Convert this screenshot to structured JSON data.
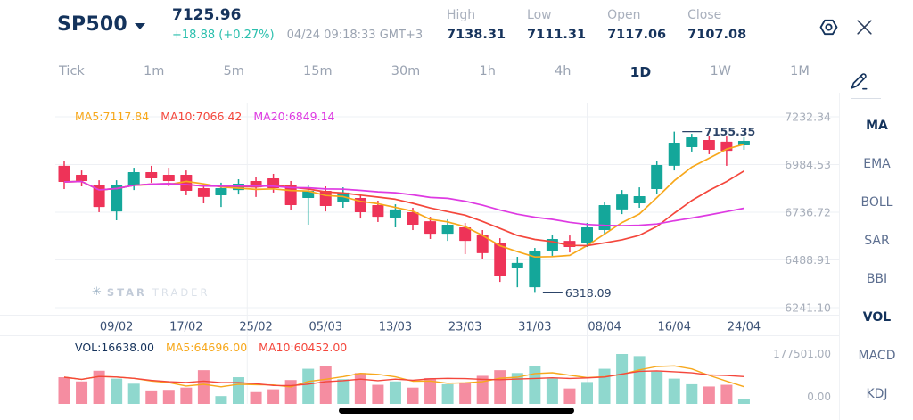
{
  "header": {
    "symbol": "SP500",
    "price": "7125.96",
    "change": "+18.88 (+0.27%)",
    "timestamp": "04/24 09:18:33 GMT+3",
    "stats": [
      {
        "label": "High",
        "value": "7138.31"
      },
      {
        "label": "Low",
        "value": "7111.31"
      },
      {
        "label": "Open",
        "value": "7117.06"
      },
      {
        "label": "Close",
        "value": "7107.08"
      }
    ]
  },
  "icons": {
    "settings": "gear-icon",
    "close": "close-icon",
    "draw": "pencil-icon",
    "symbol_caret": "chevron-down-icon"
  },
  "timeframes": {
    "items": [
      "Tick",
      "1m",
      "5m",
      "15m",
      "30m",
      "1h",
      "4h",
      "1D",
      "1W",
      "1M"
    ],
    "active": "1D"
  },
  "sidebar": {
    "items": [
      "MA",
      "EMA",
      "BOLL",
      "SAR",
      "BBI",
      "VOL",
      "MACD",
      "KDJ"
    ],
    "active": [
      "MA",
      "VOL"
    ]
  },
  "price_ma_labels": [
    {
      "text": "MA5:7117.84",
      "color": "ma5"
    },
    {
      "text": "MA10:7066.42",
      "color": "ma10"
    },
    {
      "text": "MA20:6849.14",
      "color": "ma20"
    }
  ],
  "volume_labels": [
    {
      "text": "VOL:16638.00",
      "color": "navy"
    },
    {
      "text": "MA5:64696.00",
      "color": "ma5"
    },
    {
      "text": "MA10:60452.00",
      "color": "ma10"
    }
  ],
  "watermark": {
    "star_icon": "✳",
    "text_bold": "STAR",
    "text_light": "TRADER"
  },
  "colors": {
    "bull": "#14a79a",
    "bear": "#ee3358",
    "bull_vol": "#8fd8ce",
    "bear_vol": "#f58da1",
    "ma5": "#f7a81c",
    "ma10": "#f4473c",
    "ma20": "#de3ae2",
    "navy": "#16335c",
    "gray_label": "#a7aeba",
    "date_label": "#3b5175",
    "grid": "#eef0f4",
    "annotation": "#2c4468",
    "accent_up": "#2abfad"
  },
  "chart_data": {
    "type": "candlestick+volume",
    "title": "SP500 1D",
    "y_ticks": [
      {
        "label": "7232.34",
        "value": 7232.34
      },
      {
        "label": "6984.53",
        "value": 6984.53
      },
      {
        "label": "6736.72",
        "value": 6736.72
      },
      {
        "label": "6488.91",
        "value": 6488.91
      },
      {
        "label": "6241.10",
        "value": 6241.1
      }
    ],
    "x_ticks": [
      {
        "label": "09/02",
        "index": 3
      },
      {
        "label": "17/02",
        "index": 7
      },
      {
        "label": "25/02",
        "index": 11
      },
      {
        "label": "05/03",
        "index": 15
      },
      {
        "label": "13/03",
        "index": 19
      },
      {
        "label": "23/03",
        "index": 23
      },
      {
        "label": "31/03",
        "index": 27
      },
      {
        "label": "08/04",
        "index": 31
      },
      {
        "label": "16/04",
        "index": 35
      },
      {
        "label": "24/04",
        "index": 39
      }
    ],
    "v_gridline_indices": [
      10.5,
      30
    ],
    "candles_ohlc": [
      [
        6978,
        7001,
        6857,
        6894
      ],
      [
        6931,
        6954,
        6871,
        6899
      ],
      [
        6880,
        6903,
        6737,
        6764
      ],
      [
        6741,
        6903,
        6695,
        6880
      ],
      [
        6876,
        6968,
        6852,
        6945
      ],
      [
        6945,
        6978,
        6890,
        6913
      ],
      [
        6931,
        6968,
        6871,
        6899
      ],
      [
        6931,
        6954,
        6825,
        6848
      ],
      [
        6862,
        6885,
        6783,
        6816
      ],
      [
        6825,
        6890,
        6764,
        6862
      ],
      [
        6852,
        6908,
        6829,
        6885
      ],
      [
        6899,
        6922,
        6816,
        6866
      ],
      [
        6913,
        6936,
        6839,
        6862
      ],
      [
        6876,
        6899,
        6746,
        6774
      ],
      [
        6811,
        6876,
        6672,
        6848
      ],
      [
        6848,
        6871,
        6741,
        6769
      ],
      [
        6788,
        6866,
        6760,
        6839
      ],
      [
        6811,
        6834,
        6704,
        6737
      ],
      [
        6774,
        6797,
        6686,
        6713
      ],
      [
        6709,
        6778,
        6658,
        6751
      ],
      [
        6737,
        6760,
        6644,
        6672
      ],
      [
        6690,
        6713,
        6598,
        6625
      ],
      [
        6625,
        6700,
        6588,
        6672
      ],
      [
        6658,
        6681,
        6519,
        6588
      ],
      [
        6621,
        6644,
        6496,
        6524
      ],
      [
        6579,
        6602,
        6375,
        6403
      ],
      [
        6449,
        6505,
        6347,
        6473
      ],
      [
        6347,
        6551,
        6318.09,
        6533
      ],
      [
        6533,
        6621,
        6510,
        6598
      ],
      [
        6588,
        6616,
        6528,
        6556
      ],
      [
        6579,
        6681,
        6556,
        6658
      ],
      [
        6644,
        6792,
        6625,
        6774
      ],
      [
        6751,
        6852,
        6727,
        6829
      ],
      [
        6783,
        6866,
        6760,
        6820
      ],
      [
        6857,
        7005,
        6834,
        6982
      ],
      [
        6978,
        7155.35,
        6954,
        7098
      ],
      [
        7075,
        7144,
        7052,
        7126
      ],
      [
        7112,
        7135,
        7038,
        7061
      ],
      [
        7103,
        7130,
        6978,
        7056
      ],
      [
        7084,
        7126,
        7061,
        7107.08
      ]
    ],
    "volumes": [
      95000,
      80000,
      118000,
      90000,
      72000,
      48000,
      50000,
      58000,
      120000,
      28000,
      95000,
      42000,
      52000,
      85000,
      125000,
      135000,
      88000,
      110000,
      68000,
      80000,
      58000,
      92000,
      70000,
      75000,
      100000,
      120000,
      110000,
      135000,
      90000,
      55000,
      78000,
      125000,
      177501,
      170000,
      115000,
      90000,
      70000,
      62000,
      68000,
      16638
    ],
    "volume_max": 177501,
    "volume_axis_labels": [
      "177501.00",
      "0.00"
    ],
    "ma_windows": [
      5,
      10,
      20
    ],
    "volume_ma_windows": [
      5,
      10
    ],
    "annotations": [
      {
        "label": "7155.35",
        "index": 35,
        "at": "high"
      },
      {
        "label": "6318.09",
        "index": 27,
        "at": "low"
      }
    ],
    "legend": [
      "MA5",
      "MA10",
      "MA20"
    ]
  }
}
